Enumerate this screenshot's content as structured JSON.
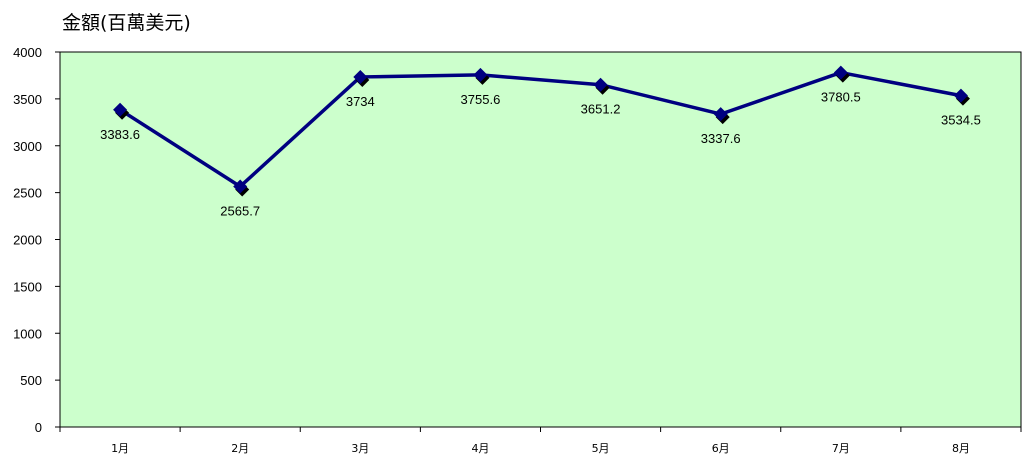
{
  "colors": {
    "plot_background": "#ccffcc",
    "series_line": "#000080",
    "marker_shadow": "#000000",
    "axis": "#000000"
  },
  "chart_data": {
    "type": "line",
    "title": "",
    "ylabel": "金額(百萬美元)",
    "xlabel": "",
    "categories": [
      "1月",
      "2月",
      "3月",
      "4月",
      "5月",
      "6月",
      "7月",
      "8月"
    ],
    "series": [
      {
        "values": [
          3383.6,
          2565.7,
          3734,
          3755.6,
          3651.2,
          3337.6,
          3780.5,
          3534.5
        ],
        "labels": [
          "3383.6",
          "2565.7",
          "3734",
          "3755.6",
          "3651.2",
          "3337.6",
          "3780.5",
          "3534.5"
        ],
        "marker": "diamond"
      }
    ],
    "ylim": [
      0,
      4000
    ],
    "yticks": [
      0,
      500,
      1000,
      1500,
      2000,
      2500,
      3000,
      3500,
      4000
    ],
    "grid": false,
    "legend": "none"
  }
}
